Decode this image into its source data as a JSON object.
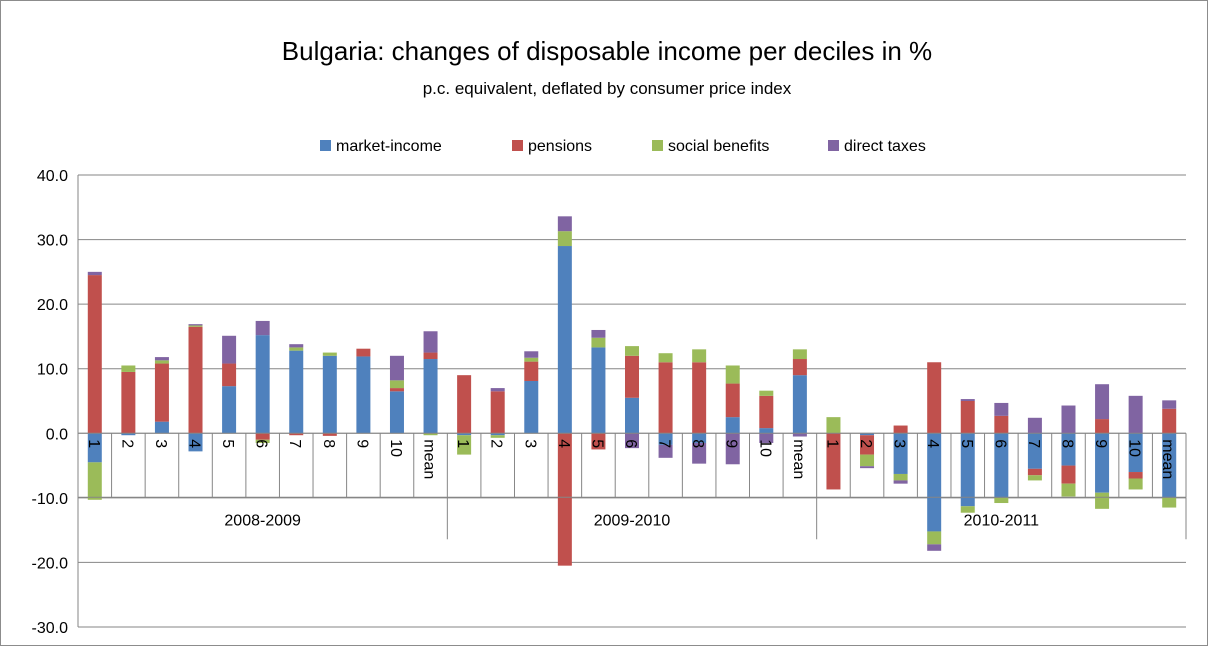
{
  "chart_data": {
    "type": "bar",
    "stacked": true,
    "title": "Bulgaria: changes of disposable income per deciles in %",
    "subtitle": "p.c. equivalent, deflated by consumer price index",
    "xlabel": "",
    "ylabel": "",
    "ylim": [
      -30,
      40
    ],
    "yticks": [
      40,
      30,
      20,
      10,
      0,
      -10,
      -20,
      -30
    ],
    "ytick_labels": [
      "40.0",
      "30.0",
      "20.0",
      "10.0",
      "0.0",
      "-10.0",
      "-20.0",
      "-30.0"
    ],
    "grid": true,
    "legend_position": "top",
    "categories": [
      "1",
      "2",
      "3",
      "4",
      "5",
      "6",
      "7",
      "8",
      "9",
      "10",
      "mean",
      "1",
      "2",
      "3",
      "4",
      "5",
      "6",
      "7",
      "8",
      "9",
      "10",
      "mean",
      "1",
      "2",
      "3",
      "4",
      "5",
      "6",
      "7",
      "8",
      "9",
      "10",
      "mean"
    ],
    "groups": [
      {
        "label": "2008-2009",
        "count": 11
      },
      {
        "label": "2009-2010",
        "count": 11
      },
      {
        "label": "2010-2011",
        "count": 11
      }
    ],
    "series": [
      {
        "name": "market-income",
        "color": "#4f81bd",
        "values": [
          -4.5,
          -0.3,
          1.8,
          -2.8,
          7.3,
          15.2,
          12.8,
          12.0,
          11.9,
          6.5,
          11.5,
          -0.3,
          -0.3,
          8.1,
          29.0,
          13.3,
          5.5,
          -1.8,
          -1.5,
          2.5,
          0.8,
          9.0,
          0.0,
          -0.3,
          -6.3,
          -15.2,
          -11.3,
          -10.0,
          -5.5,
          -5.0,
          -9.2,
          -6.0,
          -10.0
        ]
      },
      {
        "name": "pensions",
        "color": "#c0504d",
        "values": [
          24.5,
          9.5,
          9.0,
          16.5,
          3.5,
          -1.0,
          -0.3,
          -0.4,
          1.2,
          0.5,
          1.0,
          9.0,
          6.5,
          3.0,
          -20.5,
          -2.5,
          6.5,
          11.0,
          11.0,
          5.2,
          5.0,
          2.5,
          -8.7,
          -3.0,
          1.2,
          11.0,
          5.0,
          2.7,
          -1.0,
          -2.8,
          2.2,
          -1.0,
          3.8
        ]
      },
      {
        "name": "social benefits",
        "color": "#9bbb59",
        "values": [
          -5.8,
          1.0,
          0.5,
          0.2,
          0.0,
          -0.5,
          0.5,
          0.5,
          0.0,
          1.2,
          -0.3,
          -3.0,
          -0.4,
          0.6,
          2.3,
          1.5,
          1.5,
          1.4,
          2.0,
          2.8,
          0.8,
          1.5,
          2.5,
          -1.8,
          -1.0,
          -2.0,
          -1.0,
          -0.8,
          -0.8,
          -2.0,
          -2.5,
          -1.7,
          -1.5
        ]
      },
      {
        "name": "direct taxes",
        "color": "#8064a2",
        "values": [
          0.5,
          0.0,
          0.5,
          0.2,
          4.3,
          2.2,
          0.5,
          0.0,
          0.0,
          3.8,
          3.3,
          0.0,
          0.5,
          1.0,
          2.3,
          1.2,
          -2.3,
          -2.0,
          -3.2,
          -4.8,
          -1.5,
          -0.5,
          0.0,
          -0.3,
          -0.5,
          -1.0,
          0.3,
          2.0,
          2.4,
          4.3,
          5.4,
          5.8,
          1.3
        ]
      }
    ]
  }
}
